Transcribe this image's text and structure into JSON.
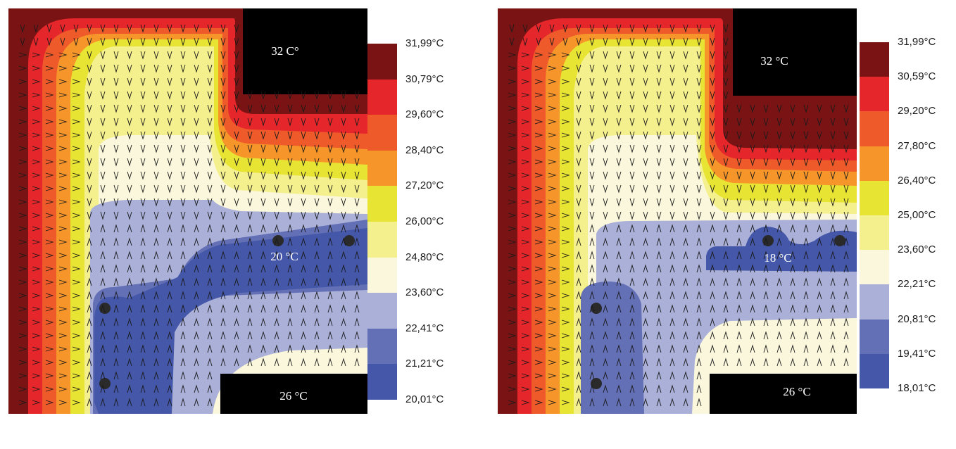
{
  "palette": {
    "c0": "#7a1414",
    "c1": "#e5262b",
    "c2": "#ef5a2a",
    "c3": "#f6962a",
    "c4": "#e8e433",
    "c5": "#f5f08e",
    "c6": "#fbf7dc",
    "c7": "#aab0d8",
    "c8": "#6470b6",
    "c9": "#4457a8",
    "black": "#000000"
  },
  "panels": [
    {
      "id": "left",
      "labels": {
        "top_region": "32 C°",
        "inner_region": "20 °C",
        "bottom_region": "26 °C"
      },
      "legend": [
        "31,99°C",
        "30,79°C",
        "29,60°C",
        "28,40°C",
        "27,20°C",
        "26,00°C",
        "24,80°C",
        "23,60°C",
        "22,41°C",
        "21,21°C",
        "20,01°C"
      ]
    },
    {
      "id": "right",
      "labels": {
        "top_region": "32 °C",
        "inner_region": "18 °C",
        "bottom_region": "26 °C"
      },
      "legend": [
        "31,99°C",
        "30,59°C",
        "29,20°C",
        "27,80°C",
        "26,40°C",
        "25,00°C",
        "23,60°C",
        "22,21°C",
        "20,81°C",
        "19,41°C",
        "18,01°C"
      ]
    }
  ]
}
